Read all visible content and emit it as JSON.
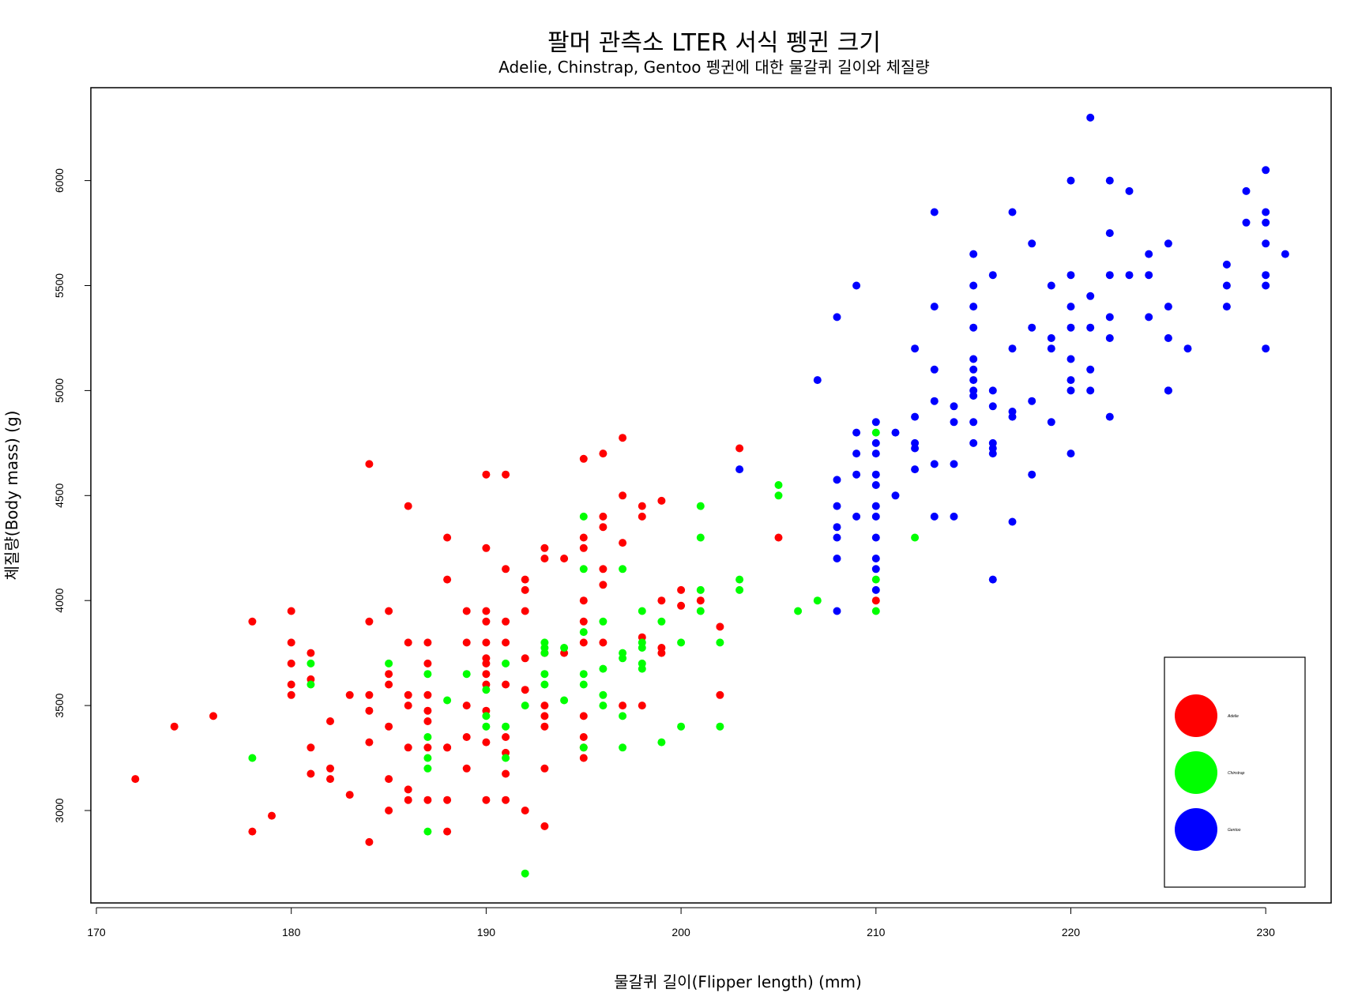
{
  "chart_data": {
    "type": "scatter",
    "title": "팔머 관측소 LTER 서식 펭귄 크기",
    "subtitle": "Adelie, Chinstrap, Gentoo 펭귄에 대한 물갈퀴 길이와 체질량",
    "xlabel": "물갈퀴 길이(Flipper length) (mm)",
    "ylabel": "체질량(Body mass) (g)",
    "xlim": [
      170,
      233
    ],
    "ylim": [
      2650,
      6450
    ],
    "xticks": [
      170,
      180,
      190,
      200,
      210,
      220,
      230
    ],
    "yticks": [
      3000,
      3500,
      4000,
      4500,
      5000,
      5500,
      6000
    ],
    "grid": false,
    "legend_position": "bottom-right",
    "series": [
      {
        "name": "Adelie",
        "color": "#ff0000",
        "x": [
          172,
          174,
          176,
          178,
          178,
          179,
          180,
          180,
          180,
          180,
          180,
          181,
          181,
          181,
          181,
          182,
          182,
          182,
          183,
          183,
          184,
          184,
          184,
          184,
          184,
          184,
          185,
          185,
          185,
          185,
          185,
          185,
          186,
          186,
          186,
          186,
          186,
          186,
          186,
          187,
          187,
          187,
          187,
          187,
          187,
          187,
          188,
          188,
          188,
          188,
          188,
          188,
          189,
          189,
          189,
          189,
          189,
          190,
          190,
          190,
          190,
          190,
          190,
          190,
          190,
          190,
          190,
          190,
          190,
          191,
          191,
          191,
          191,
          191,
          191,
          191,
          191,
          191,
          192,
          192,
          192,
          192,
          192,
          192,
          193,
          193,
          193,
          193,
          193,
          193,
          193,
          193,
          194,
          194,
          195,
          195,
          195,
          195,
          195,
          195,
          195,
          195,
          195,
          195,
          196,
          196,
          196,
          196,
          196,
          196,
          197,
          197,
          197,
          197,
          198,
          198,
          198,
          198,
          199,
          199,
          199,
          199,
          200,
          200,
          201,
          202,
          202,
          203,
          205,
          210
        ],
        "y": [
          3150,
          3400,
          3450,
          3900,
          2900,
          2975,
          3950,
          3800,
          3700,
          3600,
          3550,
          3750,
          3625,
          3300,
          3175,
          3425,
          3200,
          3150,
          3550,
          3075,
          4650,
          3900,
          3550,
          3475,
          3325,
          2850,
          3950,
          3650,
          3600,
          3400,
          3150,
          3000,
          4450,
          3800,
          3550,
          3500,
          3300,
          3100,
          3050,
          3800,
          3700,
          3550,
          3475,
          3425,
          3300,
          3050,
          4300,
          4100,
          3300,
          3050,
          2900,
          3300,
          3950,
          3800,
          3500,
          3350,
          3200,
          4600,
          4250,
          3950,
          3900,
          3800,
          3725,
          3700,
          3650,
          3600,
          3475,
          3325,
          3050,
          4600,
          4150,
          3900,
          3800,
          3350,
          3275,
          3175,
          3050,
          3600,
          4100,
          4050,
          3950,
          3725,
          3000,
          3575,
          4250,
          4200,
          3750,
          3500,
          3450,
          3400,
          3200,
          2925,
          4200,
          3750,
          4675,
          4300,
          4250,
          4000,
          3900,
          3800,
          3450,
          3350,
          3300,
          3250,
          4700,
          4400,
          4350,
          4150,
          4075,
          3800,
          4775,
          4500,
          4275,
          3500,
          4450,
          4400,
          3825,
          3500,
          4475,
          4000,
          3775,
          3750,
          4050,
          3975,
          4000,
          3875,
          3550,
          4725,
          4300,
          4000
        ]
      },
      {
        "name": "Chinstrap",
        "color": "#00ff00",
        "x": [
          178,
          181,
          181,
          185,
          187,
          187,
          187,
          187,
          187,
          188,
          189,
          190,
          190,
          190,
          191,
          191,
          191,
          192,
          192,
          193,
          193,
          193,
          193,
          193,
          194,
          194,
          195,
          195,
          195,
          195,
          195,
          195,
          196,
          196,
          196,
          196,
          197,
          197,
          197,
          197,
          197,
          198,
          198,
          198,
          198,
          198,
          199,
          199,
          200,
          200,
          201,
          201,
          201,
          201,
          202,
          202,
          203,
          203,
          205,
          205,
          206,
          207,
          210,
          210,
          210,
          212
        ],
        "y": [
          3250,
          3700,
          3600,
          3700,
          3650,
          3350,
          3250,
          3200,
          2900,
          3525,
          3650,
          3575,
          3450,
          3400,
          3700,
          3400,
          3250,
          3500,
          2700,
          3800,
          3775,
          3750,
          3650,
          3600,
          3775,
          3525,
          4400,
          4150,
          3850,
          3650,
          3600,
          3300,
          3900,
          3675,
          3550,
          3500,
          4150,
          3750,
          3725,
          3450,
          3300,
          3950,
          3775,
          3700,
          3675,
          3800,
          3900,
          3325,
          3800,
          3400,
          4450,
          4300,
          4050,
          3950,
          3800,
          3400,
          4100,
          4050,
          4550,
          4500,
          3950,
          4000,
          4800,
          4100,
          3950,
          4300
        ]
      },
      {
        "name": "Gentoo",
        "color": "#0000ff",
        "x": [
          203,
          207,
          208,
          208,
          208,
          208,
          208,
          208,
          208,
          209,
          209,
          209,
          209,
          209,
          210,
          210,
          210,
          210,
          210,
          210,
          210,
          210,
          210,
          210,
          210,
          211,
          211,
          212,
          212,
          212,
          212,
          212,
          213,
          213,
          213,
          213,
          213,
          213,
          214,
          214,
          214,
          214,
          215,
          215,
          215,
          215,
          215,
          215,
          215,
          215,
          215,
          215,
          215,
          216,
          216,
          216,
          216,
          216,
          216,
          216,
          217,
          217,
          217,
          217,
          217,
          218,
          218,
          218,
          218,
          219,
          219,
          219,
          219,
          220,
          220,
          220,
          220,
          220,
          220,
          220,
          220,
          221,
          221,
          221,
          221,
          221,
          222,
          222,
          222,
          222,
          222,
          222,
          223,
          223,
          224,
          224,
          224,
          225,
          225,
          225,
          225,
          225,
          226,
          228,
          228,
          228,
          229,
          229,
          230,
          230,
          230,
          230,
          230,
          230,
          230,
          231
        ],
        "y": [
          4625,
          5050,
          5350,
          4575,
          4450,
          4350,
          4300,
          4200,
          3950,
          5500,
          4800,
          4700,
          4600,
          4400,
          4850,
          4750,
          4700,
          4600,
          4550,
          4450,
          4400,
          4300,
          4200,
          4150,
          4050,
          4800,
          4500,
          5200,
          4875,
          4750,
          4725,
          4625,
          5850,
          5400,
          5100,
          4950,
          4650,
          4400,
          4925,
          4850,
          4650,
          4400,
          5650,
          5500,
          5400,
          5300,
          5150,
          5100,
          5050,
          5000,
          4975,
          4850,
          4750,
          5550,
          5000,
          4925,
          4750,
          4725,
          4700,
          4100,
          5850,
          5200,
          4900,
          4875,
          4375,
          5700,
          5300,
          4950,
          4600,
          5500,
          5250,
          5200,
          4850,
          4700,
          6000,
          5550,
          5400,
          5300,
          5150,
          5050,
          5000,
          6300,
          5450,
          5300,
          5100,
          5000,
          6000,
          5750,
          5550,
          5350,
          5250,
          4875,
          5950,
          5550,
          5650,
          5550,
          5350,
          5700,
          5400,
          5250,
          5000,
          5000,
          5200,
          5600,
          5500,
          5400,
          5950,
          5800,
          6050,
          5850,
          5800,
          5700,
          5550,
          5500,
          5200,
          5650
        ]
      }
    ]
  }
}
